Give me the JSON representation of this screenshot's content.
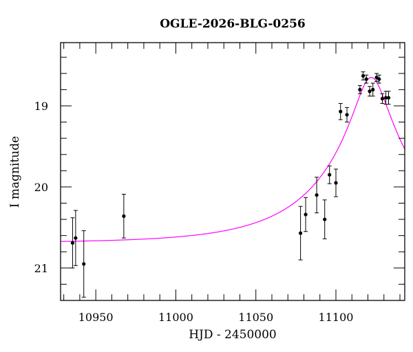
{
  "chart_data": {
    "type": "scatter",
    "title": "OGLE-2026-BLG-0256",
    "xlabel": "HJD - 2450000",
    "ylabel": "I magnitude",
    "xlim": [
      10928,
      11143
    ],
    "ylim": [
      21.4,
      18.22
    ],
    "y_inverted": true,
    "grid": false,
    "x_ticks": [
      10950,
      11000,
      11050,
      11100
    ],
    "x_tick_labels": [
      "10950",
      "11000",
      "11050",
      "11100"
    ],
    "x_minor_step": 10,
    "y_ticks": [
      19,
      20,
      21
    ],
    "y_tick_labels": [
      "19",
      "20",
      "21"
    ],
    "y_minor_step": 0.2,
    "series": [
      {
        "kind": "points_with_errorbars",
        "color": "#000000",
        "x": [
          10935.5,
          10937.4,
          10942.5,
          10967.5,
          11077.9,
          11081.1,
          11088.0,
          11093.0,
          11096.0,
          11100.0,
          11102.9,
          11106.9,
          11115.0,
          11117.0,
          11119.0,
          11121.1,
          11123.1,
          11125.4,
          11127.0,
          11129.0,
          11131.2,
          11132.9
        ],
        "y": [
          20.69,
          20.63,
          20.95,
          20.36,
          20.57,
          20.34,
          20.1,
          20.4,
          19.85,
          19.95,
          19.07,
          19.11,
          18.8,
          18.63,
          18.67,
          18.82,
          18.8,
          18.65,
          18.67,
          18.91,
          18.9,
          18.9
        ],
        "err": [
          0.31,
          0.34,
          0.41,
          0.27,
          0.33,
          0.21,
          0.22,
          0.24,
          0.11,
          0.17,
          0.1,
          0.09,
          0.05,
          0.05,
          0.05,
          0.06,
          0.08,
          0.05,
          0.05,
          0.06,
          0.08,
          0.08
        ]
      },
      {
        "kind": "model_curve",
        "color": "#ff00ff",
        "model": "point-source point-lens",
        "t0": 11122.1,
        "tE": 64,
        "u0": 0.154,
        "I_base": 20.69
      }
    ]
  }
}
